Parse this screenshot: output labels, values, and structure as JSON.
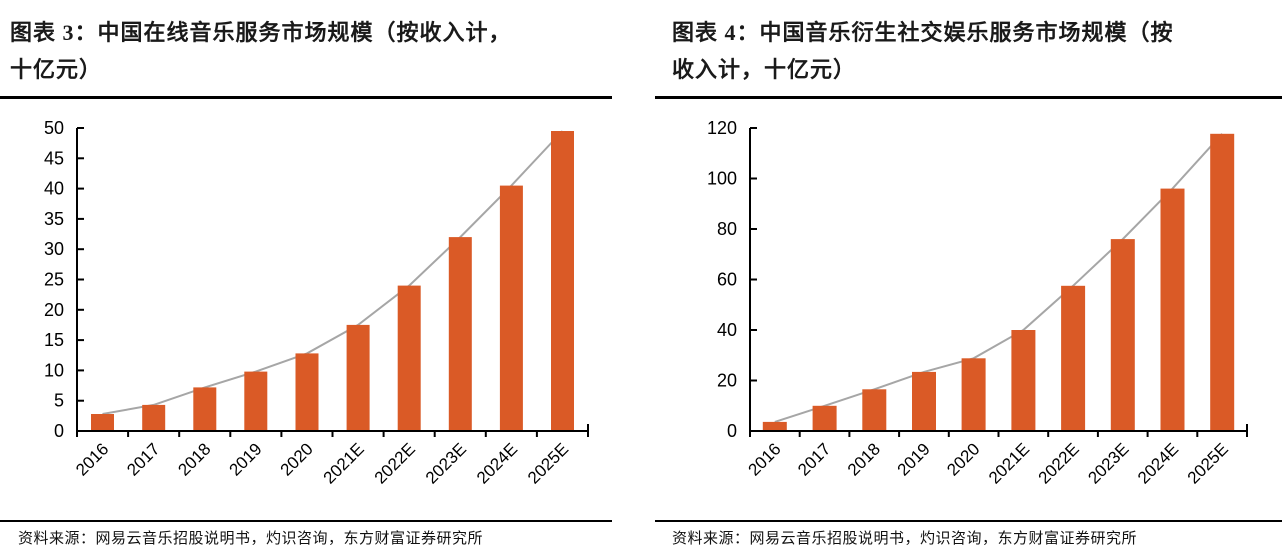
{
  "colors": {
    "bar": "#DA5A26",
    "trend_line": "#A6A6A6",
    "axis": "#000000",
    "rule": "#000000",
    "text": "#000000"
  },
  "panels": [
    {
      "title_lines": [
        "图表 3：中国在线音乐服务市场规模（按收入计，",
        "十亿元）"
      ],
      "source": "资料来源：网易云音乐招股说明书，灼识咨询，东方财富证券研究所"
    },
    {
      "title_lines": [
        "图表 4：中国音乐衍生社交娱乐服务市场规模（按",
        "收入计，十亿元）"
      ],
      "source": "资料来源：网易云音乐招股说明书，灼识咨询，东方财富证券研究所"
    }
  ],
  "chart_data": [
    {
      "type": "bar",
      "title": "图表 3：中国在线音乐服务市场规模（按收入计，十亿元）",
      "unit": "十亿元",
      "categories": [
        "2016",
        "2017",
        "2018",
        "2019",
        "2020",
        "2021E",
        "2022E",
        "2023E",
        "2024E",
        "2025E"
      ],
      "values": [
        2.8,
        4.3,
        7.2,
        9.8,
        12.8,
        17.5,
        24.0,
        32.0,
        40.5,
        49.5
      ],
      "overlay_trend_line": true,
      "xlabel": "",
      "ylabel": "",
      "ylim": [
        0,
        50
      ],
      "ytick_step": 5,
      "grid": false,
      "legend": "none"
    },
    {
      "type": "bar",
      "title": "图表 4：中国音乐衍生社交娱乐服务市场规模（按收入计，十亿元）",
      "unit": "十亿元",
      "categories": [
        "2016",
        "2017",
        "2018",
        "2019",
        "2020",
        "2021E",
        "2022E",
        "2023E",
        "2024E",
        "2025E"
      ],
      "values": [
        3.6,
        10.0,
        16.5,
        23.4,
        28.8,
        40.0,
        57.5,
        76.0,
        96.0,
        117.7
      ],
      "overlay_trend_line": true,
      "xlabel": "",
      "ylabel": "",
      "ylim": [
        0,
        120
      ],
      "ytick_step": 20,
      "grid": false,
      "legend": "none"
    }
  ]
}
